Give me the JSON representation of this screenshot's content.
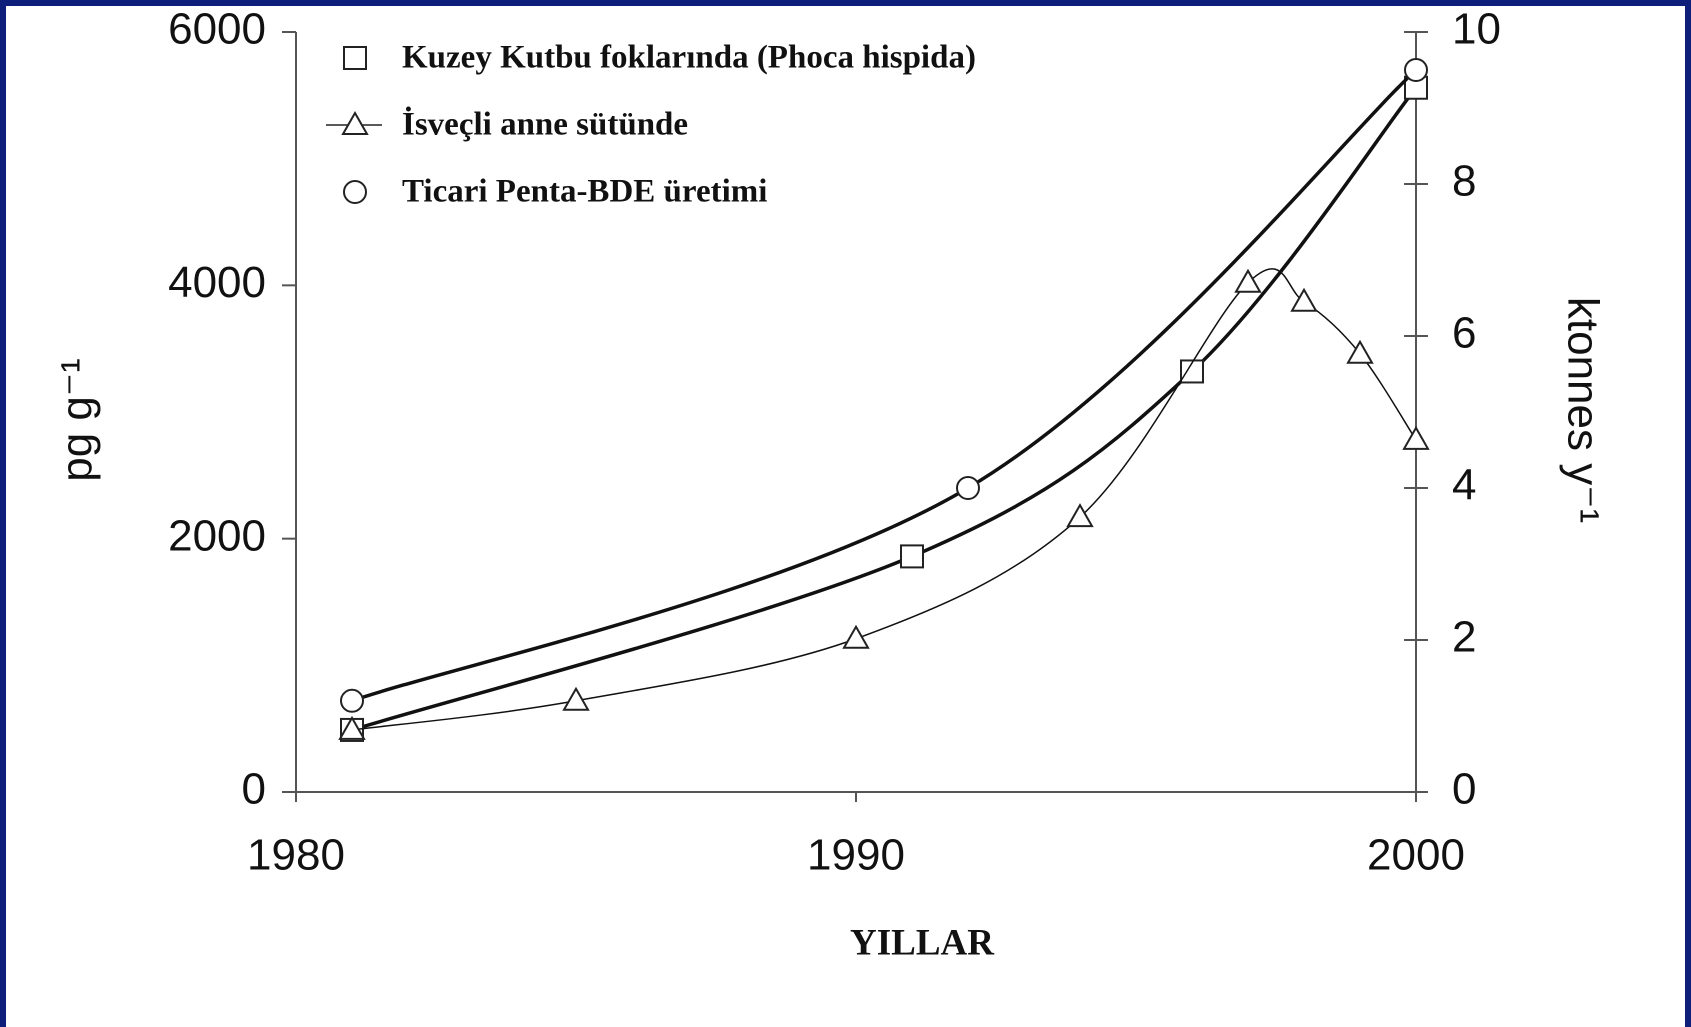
{
  "chart_data": {
    "type": "line",
    "xlabel": "YILLAR",
    "ylabel": "pg g⁻¹",
    "y2label": "ktonnes y⁻¹",
    "xlim": [
      1980,
      2000
    ],
    "xticks": [
      1980,
      1990,
      2000
    ],
    "ylim": [
      0,
      6000
    ],
    "yticks": [
      0,
      2000,
      4000,
      6000
    ],
    "y2lim": [
      0,
      10
    ],
    "y2ticks": [
      0,
      2,
      4,
      6,
      8,
      10
    ],
    "legend": "upper left",
    "series": [
      {
        "name": "Kuzey Kutbu foklarında (Phoca hispida)",
        "marker": "square",
        "color": "#111111",
        "axis": "y",
        "x": [
          1981,
          1991,
          1996,
          2000
        ],
        "values": [
          490,
          1860,
          3320,
          5560
        ]
      },
      {
        "name": "İsveçli anne sütünde",
        "marker": "triangle",
        "color": "#111111",
        "axis": "y",
        "x": [
          1981,
          1985,
          1990,
          1994,
          1997,
          1998,
          1999,
          2000
        ],
        "values": [
          490,
          720,
          1210,
          2170,
          4020,
          3870,
          3460,
          2780
        ]
      },
      {
        "name": "Ticari Penta-BDE üretimi",
        "marker": "circle",
        "color": "#111111",
        "axis": "y2",
        "x": [
          1981,
          1992,
          2000
        ],
        "values": [
          1.2,
          4.0,
          9.5
        ]
      }
    ]
  }
}
